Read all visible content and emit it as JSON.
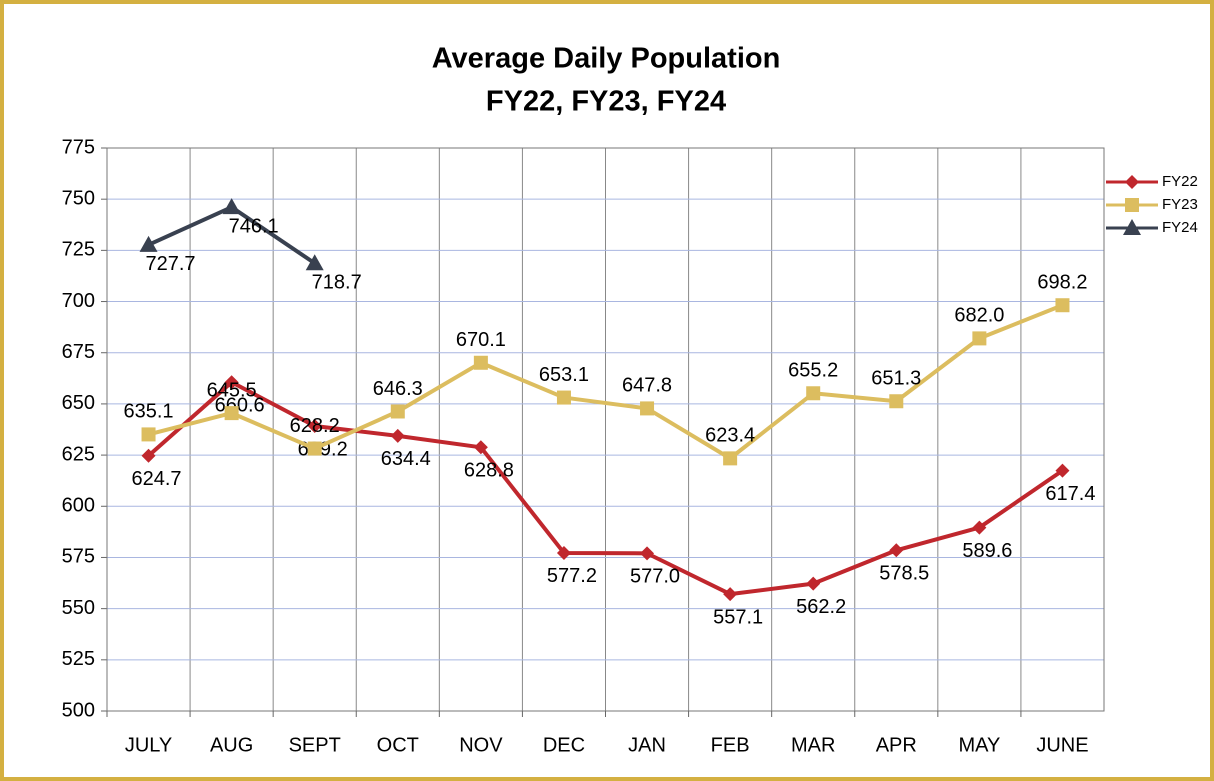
{
  "chart_data": {
    "type": "line",
    "title": "Average Daily Population",
    "subtitle": "FY22, FY23, FY24",
    "categories": [
      "JULY",
      "AUG",
      "SEPT",
      "OCT",
      "NOV",
      "DEC",
      "JAN",
      "FEB",
      "MAR",
      "APR",
      "MAY",
      "JUNE"
    ],
    "series": [
      {
        "name": "FY22",
        "color": "#c0272d",
        "marker": "diamond",
        "values": [
          624.7,
          660.6,
          639.2,
          634.4,
          628.8,
          577.2,
          577.0,
          557.1,
          562.2,
          578.5,
          589.6,
          617.4
        ],
        "value_labels": [
          "624.7",
          "660.6",
          "639.2",
          "634.4",
          "628.8",
          "577.2",
          "577.0",
          "557.1",
          "562.2",
          "578.5",
          "589.6",
          "617.4"
        ]
      },
      {
        "name": "FY23",
        "color": "#dcbd5f",
        "marker": "square",
        "values": [
          635.1,
          645.5,
          628.2,
          646.3,
          670.1,
          653.1,
          647.8,
          623.4,
          655.2,
          651.3,
          682.0,
          698.2
        ],
        "value_labels": [
          "635.1",
          "645.5",
          "628.2",
          "646.3",
          "670.1",
          "653.1",
          "647.8",
          "623.4",
          "655.2",
          "651.3",
          "682.0",
          "698.2"
        ]
      },
      {
        "name": "FY24",
        "color": "#394150",
        "marker": "triangle",
        "values": [
          727.7,
          746.1,
          718.7,
          null,
          null,
          null,
          null,
          null,
          null,
          null,
          null,
          null
        ],
        "value_labels": [
          "727.7",
          "746.1",
          "718.7",
          null,
          null,
          null,
          null,
          null,
          null,
          null,
          null,
          null
        ]
      }
    ],
    "ylim": [
      500,
      775
    ],
    "yticks": [
      500,
      525,
      550,
      575,
      600,
      625,
      650,
      675,
      700,
      725,
      750,
      775
    ],
    "grid": true,
    "legend": "right"
  }
}
